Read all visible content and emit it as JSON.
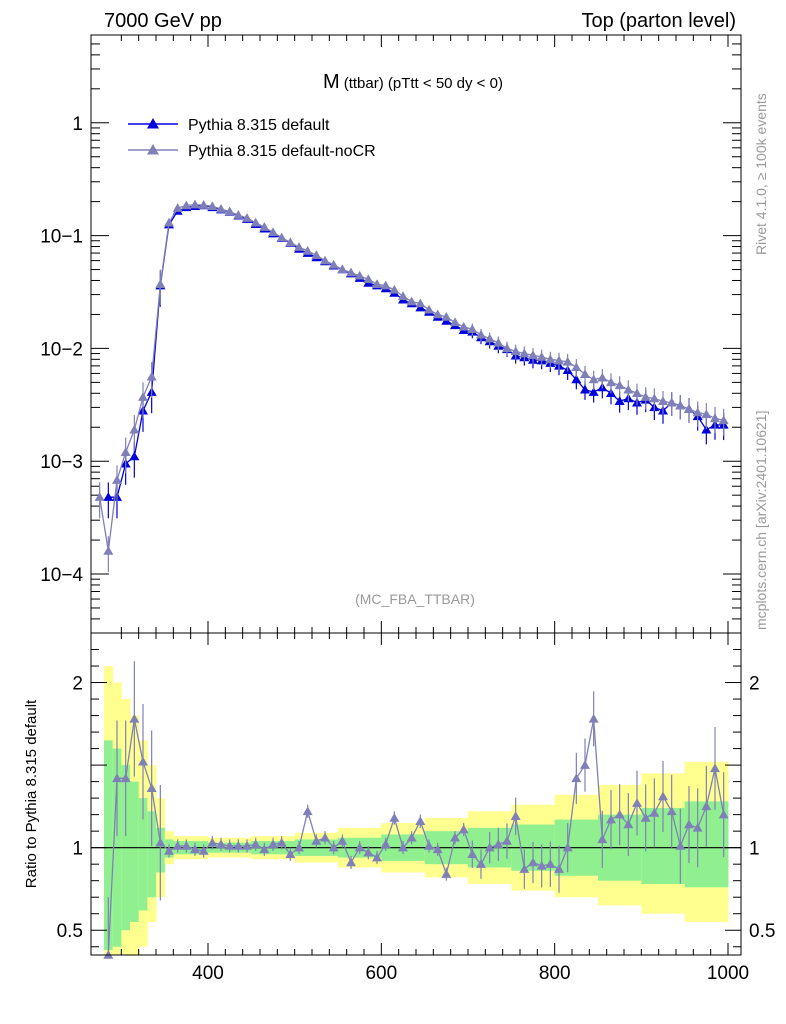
{
  "header": {
    "left": "7000 GeV pp",
    "right": "Top (parton level)"
  },
  "side_labels": {
    "rivet": "Rivet 4.1.0, ≥ 100k events",
    "mcplots": "mcplots.cern.ch [arXiv:2401.10621]"
  },
  "chart_data": [
    {
      "type": "line",
      "title_main": "M",
      "title_sub": "(ttbar) (pTtt < 50 dy < 0)",
      "analysis_label": "(MC_FBA_TTBAR)",
      "xlabel": "",
      "ylabel": "",
      "yscale": "log",
      "xlim": [
        265,
        1015
      ],
      "ylim": [
        3e-05,
        6
      ],
      "y_ticks": [
        {
          "value": 1,
          "label": "1"
        },
        {
          "value": 0.1,
          "label": "10−1"
        },
        {
          "value": 0.01,
          "label": "10−2"
        },
        {
          "value": 0.001,
          "label": "10−3"
        },
        {
          "value": 0.0001,
          "label": "10−4"
        }
      ],
      "legend": [
        {
          "label": "Pythia 8.315 default",
          "color": "#0000dd"
        },
        {
          "label": "Pythia 8.315 default-noCR",
          "color": "#8080b8"
        }
      ],
      "series": [
        {
          "name": "Pythia 8.315 default",
          "color": "#0000dd",
          "x": [
            285,
            295,
            305,
            315,
            325,
            335,
            345,
            355,
            365,
            375,
            385,
            395,
            405,
            415,
            425,
            435,
            445,
            455,
            465,
            475,
            485,
            495,
            505,
            515,
            525,
            535,
            545,
            555,
            565,
            575,
            585,
            595,
            605,
            615,
            625,
            635,
            645,
            655,
            665,
            675,
            685,
            695,
            705,
            715,
            725,
            735,
            745,
            755,
            765,
            775,
            785,
            795,
            805,
            815,
            825,
            835,
            845,
            855,
            865,
            875,
            885,
            895,
            905,
            915,
            925,
            935,
            945,
            955,
            965,
            975,
            985,
            995
          ],
          "y": [
            0.00048,
            0.00048,
            0.00095,
            0.0011,
            0.0028,
            0.0041,
            0.036,
            0.125,
            0.165,
            0.178,
            0.182,
            0.185,
            0.178,
            0.17,
            0.162,
            0.15,
            0.14,
            0.126,
            0.115,
            0.104,
            0.095,
            0.086,
            0.076,
            0.07,
            0.064,
            0.059,
            0.054,
            0.05,
            0.046,
            0.042,
            0.038,
            0.036,
            0.034,
            0.031,
            0.027,
            0.025,
            0.023,
            0.021,
            0.019,
            0.0175,
            0.016,
            0.0145,
            0.014,
            0.0125,
            0.0115,
            0.0105,
            0.0098,
            0.0086,
            0.0083,
            0.0079,
            0.0078,
            0.0074,
            0.007,
            0.0064,
            0.0053,
            0.0043,
            0.0041,
            0.0045,
            0.004,
            0.0034,
            0.0036,
            0.0033,
            0.0035,
            0.003,
            0.0028,
            0.0033,
            0.0031,
            0.0029,
            0.0025,
            0.0019,
            0.0021,
            0.0021
          ]
        },
        {
          "name": "Pythia 8.315 default-noCR",
          "color": "#8080b8",
          "x": [
            275,
            285,
            295,
            305,
            315,
            325,
            335,
            345,
            355,
            365,
            375,
            385,
            395,
            405,
            415,
            425,
            435,
            445,
            455,
            465,
            475,
            485,
            495,
            505,
            515,
            525,
            535,
            545,
            555,
            565,
            575,
            585,
            595,
            605,
            615,
            625,
            635,
            645,
            655,
            665,
            675,
            685,
            695,
            705,
            715,
            725,
            735,
            745,
            755,
            765,
            775,
            785,
            795,
            805,
            815,
            825,
            835,
            845,
            855,
            865,
            875,
            885,
            895,
            905,
            915,
            925,
            935,
            945,
            955,
            965,
            975,
            985,
            995
          ],
          "y": [
            0.00048,
            0.00016,
            0.00068,
            0.0012,
            0.0019,
            0.0037,
            0.0056,
            0.037,
            0.13,
            0.175,
            0.185,
            0.188,
            0.186,
            0.182,
            0.172,
            0.163,
            0.152,
            0.143,
            0.13,
            0.119,
            0.107,
            0.096,
            0.087,
            0.079,
            0.073,
            0.067,
            0.06,
            0.055,
            0.05,
            0.047,
            0.044,
            0.041,
            0.037,
            0.036,
            0.033,
            0.029,
            0.026,
            0.025,
            0.022,
            0.02,
            0.019,
            0.017,
            0.0155,
            0.0148,
            0.0132,
            0.0122,
            0.0112,
            0.01,
            0.0094,
            0.009,
            0.0087,
            0.0084,
            0.008,
            0.0078,
            0.0076,
            0.0068,
            0.0059,
            0.0053,
            0.0055,
            0.005,
            0.0047,
            0.0043,
            0.004,
            0.0037,
            0.0036,
            0.0034,
            0.0033,
            0.0031,
            0.0029,
            0.0027,
            0.0026,
            0.0024,
            0.0023
          ]
        }
      ]
    },
    {
      "type": "line",
      "ylabel": "Ratio to Pythia 8.315 default",
      "xlim": [
        265,
        1015
      ],
      "ylim": [
        0.35,
        2.3
      ],
      "x_ticks": [
        400,
        600,
        800,
        1000
      ],
      "y_ticks": [
        {
          "value": 2,
          "label": "2"
        },
        {
          "value": 1,
          "label": "1"
        },
        {
          "value": 0.5,
          "label": "0.5"
        }
      ],
      "reference_line": 1,
      "uncertainty_bands": {
        "edges": [
          280,
          290,
          300,
          310,
          320,
          330,
          340,
          350,
          360,
          400,
          450,
          500,
          550,
          600,
          650,
          700,
          750,
          800,
          850,
          900,
          950,
          1000
        ],
        "green_lower": [
          0.38,
          0.4,
          0.5,
          0.55,
          0.62,
          0.7,
          0.85,
          0.94,
          0.96,
          0.97,
          0.96,
          0.95,
          0.94,
          0.92,
          0.9,
          0.88,
          0.86,
          0.83,
          0.8,
          0.78,
          0.76
        ],
        "green_upper": [
          1.65,
          1.6,
          1.5,
          1.4,
          1.3,
          1.22,
          1.12,
          1.05,
          1.04,
          1.03,
          1.04,
          1.05,
          1.06,
          1.08,
          1.1,
          1.12,
          1.14,
          1.17,
          1.2,
          1.24,
          1.28
        ],
        "yellow_lower": [
          0.15,
          0.15,
          0.2,
          0.3,
          0.4,
          0.55,
          0.7,
          0.9,
          0.93,
          0.94,
          0.93,
          0.91,
          0.88,
          0.85,
          0.82,
          0.78,
          0.74,
          0.7,
          0.65,
          0.6,
          0.55
        ],
        "yellow_upper": [
          2.1,
          2.0,
          1.9,
          1.8,
          1.65,
          1.5,
          1.3,
          1.1,
          1.07,
          1.06,
          1.07,
          1.09,
          1.12,
          1.15,
          1.18,
          1.22,
          1.26,
          1.32,
          1.38,
          1.45,
          1.52
        ],
        "green_color": "#90f090",
        "yellow_color": "#ffff90"
      },
      "series": [
        {
          "name": "Pythia 8.315 default-noCR / Pythia 8.315 default",
          "color": "#8080b8",
          "x": [
            285,
            295,
            305,
            315,
            325,
            335,
            345,
            355,
            365,
            375,
            385,
            395,
            405,
            415,
            425,
            435,
            445,
            455,
            465,
            475,
            485,
            495,
            505,
            515,
            525,
            535,
            545,
            555,
            565,
            575,
            585,
            595,
            605,
            615,
            625,
            635,
            645,
            655,
            665,
            675,
            685,
            695,
            705,
            715,
            725,
            735,
            745,
            755,
            765,
            775,
            785,
            795,
            805,
            815,
            825,
            835,
            845,
            855,
            865,
            875,
            885,
            895,
            905,
            915,
            925,
            935,
            945,
            955,
            965,
            975,
            985,
            995
          ],
          "y": [
            0.35,
            1.42,
            1.42,
            1.78,
            1.52,
            1.36,
            1.03,
            0.98,
            1.01,
            1.01,
            0.99,
            0.98,
            1.03,
            1.02,
            1.01,
            1.01,
            1.01,
            1.02,
            0.99,
            1.02,
            1.03,
            0.96,
            1.0,
            1.22,
            1.04,
            1.06,
            1.0,
            1.04,
            0.91,
            1.0,
            0.97,
            0.94,
            1.02,
            1.18,
            1.0,
            1.06,
            1.16,
            1.01,
            0.99,
            0.84,
            1.06,
            1.11,
            0.96,
            0.9,
            1.0,
            1.02,
            1.04,
            1.19,
            0.87,
            0.91,
            0.89,
            0.9,
            0.87,
            1.0,
            1.42,
            1.5,
            1.78,
            1.05,
            1.17,
            1.2,
            1.14,
            1.27,
            1.18,
            1.21,
            1.31,
            1.22,
            1.01,
            1.14,
            1.12,
            1.25,
            1.48,
            1.2
          ]
        }
      ]
    }
  ]
}
